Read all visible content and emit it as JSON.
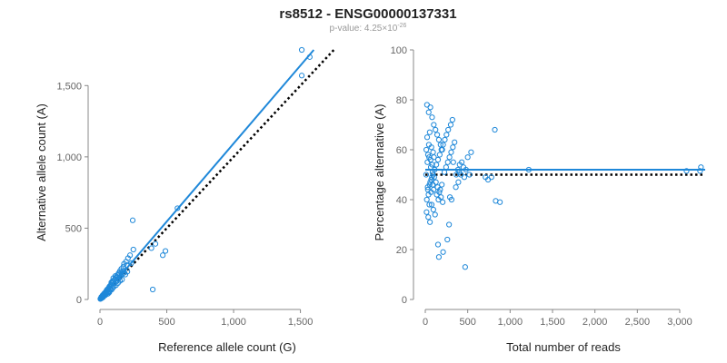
{
  "title": "rs8512 - ENSG00000137331",
  "subtitle": {
    "prefix": "p-value: 4.25×10",
    "exponent": "-26"
  },
  "colors": {
    "points": "#1f88d9",
    "fit_line": "#1f88d9",
    "reference_line": "#000000",
    "axis": "#888888",
    "tick_text": "#666666"
  },
  "chart_data": [
    {
      "type": "scatter",
      "xlabel": "Reference allele count (G)",
      "ylabel": "Alternative allele count (A)",
      "xlim": [
        0,
        1700
      ],
      "ylim": [
        0,
        1750
      ],
      "xticks": [
        0,
        500,
        1000,
        1500
      ],
      "xtick_labels": [
        "0",
        "500",
        "1,000",
        "1,500"
      ],
      "yticks": [
        0,
        500,
        1000,
        1500
      ],
      "ytick_labels": [
        "0",
        "500",
        "1,000",
        "1,500"
      ],
      "grid": false,
      "points": [
        [
          1510,
          1750
        ],
        [
          1570,
          1700
        ],
        [
          1510,
          1570
        ],
        [
          580,
          640
        ],
        [
          245,
          555
        ],
        [
          490,
          340
        ],
        [
          470,
          310
        ],
        [
          415,
          390
        ],
        [
          385,
          360
        ],
        [
          395,
          70
        ],
        [
          250,
          350
        ],
        [
          225,
          310
        ],
        [
          210,
          290
        ],
        [
          195,
          265
        ],
        [
          180,
          250
        ],
        [
          175,
          230
        ],
        [
          160,
          215
        ],
        [
          150,
          200
        ],
        [
          140,
          185
        ],
        [
          130,
          170
        ],
        [
          125,
          160
        ],
        [
          118,
          150
        ],
        [
          110,
          140
        ],
        [
          100,
          125
        ],
        [
          95,
          130
        ],
        [
          90,
          115
        ],
        [
          85,
          105
        ],
        [
          80,
          100
        ],
        [
          75,
          95
        ],
        [
          70,
          90
        ],
        [
          65,
          80
        ],
        [
          60,
          75
        ],
        [
          55,
          70
        ],
        [
          50,
          60
        ],
        [
          45,
          55
        ],
        [
          40,
          50
        ],
        [
          35,
          45
        ],
        [
          30,
          40
        ],
        [
          25,
          30
        ],
        [
          20,
          25
        ],
        [
          15,
          20
        ],
        [
          10,
          12
        ],
        [
          8,
          10
        ],
        [
          5,
          6
        ],
        [
          3,
          4
        ],
        [
          120,
          100
        ],
        [
          105,
          90
        ],
        [
          95,
          80
        ],
        [
          88,
          70
        ],
        [
          78,
          64
        ],
        [
          68,
          58
        ],
        [
          58,
          50
        ],
        [
          48,
          40
        ],
        [
          38,
          32
        ],
        [
          28,
          24
        ],
        [
          18,
          14
        ],
        [
          12,
          8
        ],
        [
          135,
          115
        ],
        [
          150,
          130
        ],
        [
          165,
          140
        ],
        [
          190,
          175
        ],
        [
          205,
          195
        ],
        [
          60,
          40
        ],
        [
          70,
          50
        ],
        [
          40,
          30
        ],
        [
          30,
          35
        ],
        [
          20,
          30
        ],
        [
          10,
          18
        ],
        [
          50,
          65
        ],
        [
          85,
          120
        ],
        [
          100,
          150
        ],
        [
          115,
          165
        ],
        [
          130,
          155
        ],
        [
          145,
          175
        ],
        [
          200,
          240
        ],
        [
          235,
          255
        ],
        [
          160,
          190
        ],
        [
          175,
          200
        ],
        [
          22,
          15
        ],
        [
          33,
          26
        ],
        [
          44,
          37
        ],
        [
          66,
          54
        ],
        [
          77,
          73
        ],
        [
          92,
          98
        ],
        [
          108,
          112
        ],
        [
          126,
          132
        ],
        [
          138,
          145
        ],
        [
          152,
          160
        ],
        [
          168,
          178
        ],
        [
          183,
          188
        ]
      ],
      "fit_line": [
        [
          0,
          0
        ],
        [
          1600,
          1750
        ]
      ],
      "reference_line": [
        [
          0,
          0
        ],
        [
          1750,
          1750
        ]
      ]
    },
    {
      "type": "scatter",
      "xlabel": "Total number of reads",
      "ylabel": "Percentage alternative (A)",
      "xlim": [
        0,
        3300
      ],
      "ylim": [
        0,
        100
      ],
      "xticks": [
        0,
        500,
        1000,
        1500,
        2000,
        2500,
        3000
      ],
      "xtick_labels": [
        "0",
        "500",
        "1,000",
        "1,500",
        "2,000",
        "2,500",
        "3,000"
      ],
      "yticks": [
        0,
        20,
        40,
        60,
        80,
        100
      ],
      "ytick_labels": [
        "0",
        "20",
        "40",
        "60",
        "80",
        "100"
      ],
      "grid": false,
      "points": [
        [
          3250,
          53
        ],
        [
          3240,
          51.5
        ],
        [
          3080,
          51.5
        ],
        [
          1220,
          52
        ],
        [
          820,
          68
        ],
        [
          830,
          39.5
        ],
        [
          880,
          39
        ],
        [
          780,
          49
        ],
        [
          740,
          48
        ],
        [
          710,
          49
        ],
        [
          470,
          13
        ],
        [
          540,
          59
        ],
        [
          500,
          57
        ],
        [
          450,
          53
        ],
        [
          420,
          50
        ],
        [
          390,
          47
        ],
        [
          360,
          45
        ],
        [
          330,
          55
        ],
        [
          310,
          40
        ],
        [
          290,
          41
        ],
        [
          320,
          72
        ],
        [
          300,
          70
        ],
        [
          270,
          68
        ],
        [
          250,
          66
        ],
        [
          230,
          64
        ],
        [
          210,
          62
        ],
        [
          190,
          60
        ],
        [
          170,
          58
        ],
        [
          150,
          56
        ],
        [
          130,
          54
        ],
        [
          110,
          52
        ],
        [
          90,
          50
        ],
        [
          70,
          48
        ],
        [
          50,
          46
        ],
        [
          30,
          44
        ],
        [
          20,
          78
        ],
        [
          40,
          75
        ],
        [
          60,
          77
        ],
        [
          80,
          73
        ],
        [
          100,
          70
        ],
        [
          120,
          68
        ],
        [
          140,
          66
        ],
        [
          160,
          64
        ],
        [
          180,
          62
        ],
        [
          200,
          60
        ],
        [
          15,
          35
        ],
        [
          35,
          33
        ],
        [
          55,
          31
        ],
        [
          75,
          38
        ],
        [
          95,
          36
        ],
        [
          115,
          34
        ],
        [
          135,
          42
        ],
        [
          155,
          40
        ],
        [
          175,
          44
        ],
        [
          195,
          46
        ],
        [
          150,
          22
        ],
        [
          210,
          19
        ],
        [
          160,
          17
        ],
        [
          260,
          24
        ],
        [
          280,
          30
        ],
        [
          25,
          55
        ],
        [
          45,
          57
        ],
        [
          65,
          53
        ],
        [
          85,
          51
        ],
        [
          105,
          49
        ],
        [
          125,
          47
        ],
        [
          145,
          45
        ],
        [
          165,
          43
        ],
        [
          185,
          41
        ],
        [
          205,
          39
        ],
        [
          225,
          51
        ],
        [
          245,
          53
        ],
        [
          265,
          55
        ],
        [
          285,
          57
        ],
        [
          305,
          59
        ],
        [
          325,
          61
        ],
        [
          345,
          63
        ],
        [
          365,
          50
        ],
        [
          385,
          52
        ],
        [
          405,
          54
        ],
        [
          10,
          50
        ],
        [
          12,
          60
        ],
        [
          18,
          40
        ],
        [
          22,
          65
        ],
        [
          28,
          45
        ],
        [
          32,
          58
        ],
        [
          38,
          42
        ],
        [
          42,
          62
        ],
        [
          48,
          38
        ],
        [
          52,
          67
        ],
        [
          58,
          47
        ],
        [
          62,
          56
        ],
        [
          68,
          43
        ],
        [
          72,
          61
        ],
        [
          78,
          49
        ],
        [
          82,
          54
        ],
        [
          88,
          46
        ],
        [
          92,
          59
        ],
        [
          98,
          44
        ],
        [
          102,
          57
        ],
        [
          400,
          51
        ],
        [
          430,
          55
        ],
        [
          460,
          49
        ],
        [
          480,
          52
        ],
        [
          520,
          50
        ]
      ],
      "fit_line": [
        [
          0,
          52
        ],
        [
          3300,
          52
        ]
      ],
      "reference_line": [
        [
          0,
          50
        ],
        [
          3300,
          50
        ]
      ]
    }
  ]
}
